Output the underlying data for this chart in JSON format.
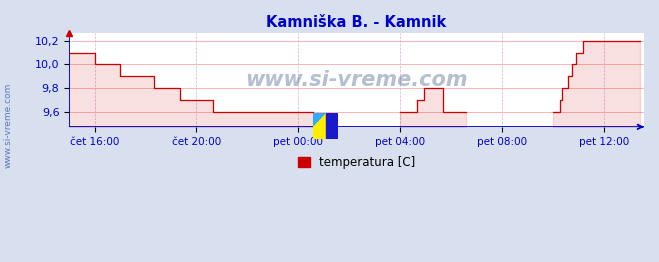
{
  "title": "Kamniška B. - Kamnik",
  "title_color": "#0000cc",
  "bg_color": "#d8e0f0",
  "plot_bg_color": "#ffffff",
  "line_color": "#cc0000",
  "axis_color": "#0000cc",
  "watermark_text": "www.si-vreme.com",
  "watermark_color": "#1a3a6b",
  "side_label": "www.si-vreme.com",
  "legend_label": "temperatura [C]",
  "legend_color": "#cc0000",
  "ylim": [
    9.47,
    10.27
  ],
  "yticks": [
    9.6,
    9.8,
    10.0,
    10.2
  ],
  "ytick_labels": [
    "9,6",
    "9,8",
    "10,0",
    "10,2"
  ],
  "xtick_pos": [
    1,
    5,
    9,
    13,
    17,
    21
  ],
  "xtick_labels": [
    "čet 16:00",
    "čet 20:00",
    "pet 00:00",
    "pet 04:00",
    "pet 08:00",
    "pet 12:00"
  ],
  "temp_values": [
    10.1,
    10.1,
    10.1,
    10.1,
    10.1,
    10.1,
    10.1,
    10.1,
    10.1,
    10.1,
    10.1,
    10.1,
    10.0,
    10.0,
    10.0,
    10.0,
    10.0,
    10.0,
    10.0,
    10.0,
    10.0,
    10.0,
    10.0,
    10.0,
    9.9,
    9.9,
    9.9,
    9.9,
    9.9,
    9.9,
    9.9,
    9.9,
    9.9,
    9.9,
    9.9,
    9.9,
    9.9,
    9.9,
    9.9,
    9.9,
    9.8,
    9.8,
    9.8,
    9.8,
    9.8,
    9.8,
    9.8,
    9.8,
    9.8,
    9.8,
    9.8,
    9.8,
    9.7,
    9.7,
    9.7,
    9.7,
    9.7,
    9.7,
    9.7,
    9.7,
    9.7,
    9.7,
    9.7,
    9.7,
    9.7,
    9.7,
    9.7,
    9.7,
    9.6,
    9.6,
    9.6,
    9.6,
    9.6,
    9.6,
    9.6,
    9.6,
    9.6,
    9.6,
    9.6,
    9.6,
    9.6,
    9.6,
    9.6,
    9.6,
    9.6,
    9.6,
    9.6,
    9.6,
    9.6,
    9.6,
    9.6,
    9.6,
    9.6,
    9.6,
    9.6,
    9.6,
    9.6,
    9.6,
    9.6,
    9.6,
    9.6,
    9.6,
    9.6,
    9.6,
    9.6,
    9.6,
    9.6,
    9.6,
    9.6,
    9.6,
    9.6,
    9.6,
    9.6,
    9.6,
    9.6,
    9.6,
    null,
    null,
    null,
    null,
    null,
    null,
    null,
    null,
    null,
    null,
    null,
    null,
    null,
    null,
    null,
    null,
    null,
    null,
    null,
    null,
    null,
    null,
    null,
    null,
    null,
    null,
    null,
    null,
    null,
    null,
    null,
    null,
    null,
    null,
    null,
    null,
    null,
    null,
    null,
    null,
    9.6,
    9.6,
    9.6,
    9.6,
    9.6,
    9.6,
    9.6,
    9.6,
    9.7,
    9.7,
    9.7,
    9.8,
    9.8,
    9.8,
    9.8,
    9.8,
    9.8,
    9.8,
    9.8,
    9.8,
    9.6,
    9.6,
    9.6,
    9.6,
    9.6,
    9.6,
    9.6,
    9.6,
    9.6,
    9.6,
    9.6,
    9.6,
    null,
    null,
    null,
    null,
    null,
    null,
    null,
    null,
    null,
    null,
    null,
    null,
    null,
    null,
    null,
    null,
    null,
    null,
    null,
    null,
    null,
    null,
    null,
    null,
    null,
    null,
    null,
    null,
    null,
    null,
    null,
    null,
    null,
    null,
    null,
    null,
    null,
    null,
    null,
    null,
    9.6,
    9.6,
    9.6,
    9.7,
    9.8,
    9.8,
    9.8,
    9.9,
    9.9,
    10.0,
    10.0,
    10.1,
    10.1,
    10.1,
    10.2,
    10.2,
    10.2,
    10.2,
    10.2,
    10.2,
    10.2,
    10.2,
    10.2,
    10.2,
    10.2,
    10.2,
    10.2,
    10.2,
    10.2,
    10.2,
    10.2,
    10.2,
    10.2,
    10.2,
    10.2,
    10.2,
    10.2,
    10.2,
    10.2,
    10.2,
    10.2,
    10.2
  ]
}
